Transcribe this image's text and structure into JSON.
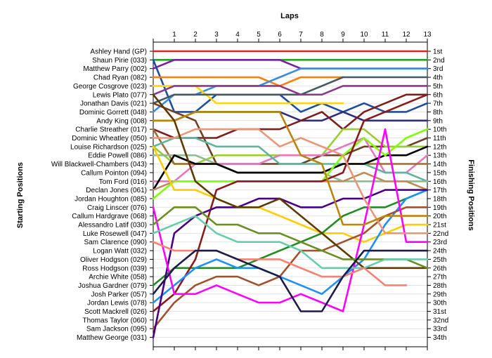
{
  "chart_data": {
    "type": "line",
    "top_title": "Laps",
    "left_title": "Starting Positions",
    "right_title": "Finishing Positions",
    "laps": [
      1,
      2,
      3,
      4,
      5,
      6,
      7,
      8,
      9,
      10,
      11,
      12,
      13
    ],
    "starting_positions": [
      "Ashley Hand (GP)",
      "Shaun Pirie (033)",
      "Matthew Parry (002)",
      "Chad Ryan (082)",
      "George Cosgrove (023)",
      "Lewis Plato (077)",
      "Jonathan Davis (021)",
      "Dominic Gorrett (048)",
      "Andy King (008)",
      "Charlie Streather (017)",
      "Dominic Wheatley (050)",
      "Louise Richardson (025)",
      "Eddie Powell (086)",
      "Will Blackwell-Chambers (043)",
      "Callum Pointon (094)",
      "Tom Ford (016)",
      "Declan Jones (061)",
      "Jordan Houghton (085)",
      "Craig Linscer (076)",
      "Callum Hardgrave (068)",
      "Alessandro Latif (030)",
      "Luke Rosewell (047)",
      "Sam Clarence (090)",
      "Logan Watt (032)",
      "Oliver Hodgson (029)",
      "Ross Hodgson (039)",
      "Archie White (058)",
      "Joshua Gardner (079)",
      "Josh Parker (057)",
      "Jordan Lewis (078)",
      "Scott Mackrell (026)",
      "Thomas Taylor (060)",
      "Sam Jackson (095)",
      "Matthew George (031)"
    ],
    "finishing_positions": [
      "1st",
      "2nd",
      "3rd",
      "4th",
      "5th",
      "6th",
      "7th",
      "8th",
      "9th",
      "10th",
      "11th",
      "12th",
      "13th",
      "14th",
      "15th",
      "16th",
      "17th",
      "18th",
      "19th",
      "20th",
      "21st",
      "22nd",
      "23rd",
      "24th",
      "25th",
      "26th",
      "27th",
      "28th",
      "29th",
      "30th",
      "31st",
      "32nd",
      "33rd",
      "34th"
    ],
    "xlim": [
      0,
      13
    ],
    "ylim": [
      1,
      34
    ],
    "y_reversed": true,
    "grid": "horizontal",
    "series": [
      {
        "color": "#d62728",
        "positions": [
          1,
          1,
          1,
          1,
          1,
          1,
          1,
          1,
          1,
          1,
          1,
          1,
          1,
          1
        ]
      },
      {
        "color": "#2ca02c",
        "positions": [
          2,
          2,
          2,
          2,
          2,
          2,
          2,
          2,
          2,
          2,
          2,
          2,
          2,
          2
        ]
      },
      {
        "color": "#7b1fa2",
        "positions": [
          3,
          2,
          2,
          2,
          2,
          2,
          2,
          3,
          3,
          3,
          3,
          3,
          3,
          3
        ]
      },
      {
        "color": "#1f4e9c",
        "positions": [
          2,
          8,
          8,
          6,
          6,
          6,
          6,
          8,
          7,
          8,
          7,
          8,
          8,
          7
        ]
      },
      {
        "color": "#ff7f0e",
        "positions": [
          4,
          4,
          4,
          4,
          4,
          4,
          5,
          4,
          4,
          4
        ]
      },
      {
        "color": "#3b8ddb",
        "positions": [
          8,
          6,
          6,
          5,
          5,
          5,
          4,
          3,
          3,
          3,
          3,
          3,
          3,
          3
        ]
      },
      {
        "color": "#ffd700",
        "positions": [
          5,
          5,
          5,
          7,
          7,
          7,
          7,
          7,
          7,
          7
        ]
      },
      {
        "color": "#455a64",
        "positions": [
          7,
          6,
          6,
          6,
          6,
          6,
          6,
          6,
          5,
          4,
          4,
          4,
          4,
          4
        ]
      },
      {
        "color": "#8b3a8b",
        "positions": [
          6,
          5,
          5,
          5,
          5,
          5,
          5,
          6,
          6,
          5,
          5,
          5,
          5,
          5
        ]
      },
      {
        "color": "#2e2e7a",
        "positions": [
          9,
          9,
          8,
          8,
          8,
          8,
          8,
          9,
          9,
          8,
          9,
          9,
          9,
          9
        ]
      },
      {
        "color": "#7b1f1f",
        "positions": [
          10,
          11,
          11,
          11,
          10,
          10,
          10,
          9,
          8,
          10,
          8,
          7,
          6,
          6
        ]
      },
      {
        "color": "#6b4226",
        "positions": [
          7,
          8,
          9,
          14,
          14,
          14,
          14,
          14,
          13,
          13,
          12,
          12,
          12,
          11
        ]
      },
      {
        "color": "#9acd32",
        "positions": [
          12,
          14,
          14,
          13,
          13,
          13,
          13,
          13,
          13,
          10,
          10,
          12,
          12,
          12
        ]
      },
      {
        "color": "#e377c2",
        "positions": [
          16,
          16,
          14,
          14,
          14,
          14,
          13,
          13,
          13,
          12,
          11,
          15,
          15,
          13
        ]
      },
      {
        "color": "#9d6b33",
        "positions": [
          10,
          14,
          14,
          14,
          15,
          15,
          15,
          15,
          15,
          14,
          14,
          14,
          14,
          14
        ]
      },
      {
        "color": "#5fb4a0",
        "positions": [
          12,
          11,
          11,
          12,
          12,
          12,
          14,
          14,
          14,
          14,
          14,
          15,
          15,
          16
        ]
      },
      {
        "color": "#8fbc8f",
        "positions": [
          13,
          13,
          13,
          14,
          15,
          15,
          15,
          15,
          15,
          16,
          16,
          16,
          16,
          16
        ]
      },
      {
        "color": "#000000",
        "positions": [
          17,
          13,
          14,
          14,
          15,
          15,
          15,
          15,
          15,
          14,
          14,
          13,
          13,
          12
        ]
      },
      {
        "color": "#bd8b57",
        "positions": [
          17,
          16,
          16,
          16,
          16,
          16,
          16,
          16,
          16,
          16,
          15,
          16,
          16,
          17
        ]
      },
      {
        "color": "#7fff00",
        "positions": [
          18,
          16,
          16,
          16,
          16,
          16,
          16,
          16,
          16,
          13,
          11,
          13,
          11,
          10
        ]
      },
      {
        "color": "#ffcc00",
        "positions": [
          12,
          17,
          17,
          18,
          19,
          19,
          20,
          21,
          22,
          22,
          23,
          22,
          21,
          21
        ]
      },
      {
        "color": "#228b22",
        "positions": [
          28,
          26,
          26,
          26,
          26,
          25,
          24,
          23,
          22,
          20,
          19,
          19,
          18,
          17
        ]
      },
      {
        "color": "#8b1a1a",
        "positions": [
          31,
          29,
          25,
          17,
          16,
          16,
          16,
          16,
          16,
          15,
          9,
          8,
          7,
          6
        ]
      },
      {
        "color": "#1e90ff",
        "positions": [
          30,
          28,
          26,
          25,
          26,
          26,
          27,
          28,
          29,
          27,
          25,
          21,
          18,
          17
        ]
      },
      {
        "color": "#a0522d",
        "positions": [
          33,
          30,
          28,
          27,
          27,
          28,
          27,
          24,
          24,
          23,
          22,
          20,
          19,
          19
        ]
      },
      {
        "color": "#4b0082",
        "positions": [
          34,
          22,
          20,
          19,
          19,
          18,
          18,
          19,
          19,
          18,
          18,
          17,
          17,
          17
        ]
      },
      {
        "color": "#ff00ff",
        "positions": [
          19,
          29,
          29,
          28,
          29,
          30,
          30,
          29,
          30,
          31,
          21,
          10,
          23,
          23
        ]
      },
      {
        "color": "#e9967a",
        "positions": [
          11,
          11,
          10,
          10,
          10,
          10,
          12,
          11,
          12,
          13,
          18,
          22,
          22,
          22
        ]
      },
      {
        "color": "#b8860b",
        "positions": [
          9,
          9,
          8,
          8,
          8,
          8,
          8,
          13,
          14,
          21,
          21,
          20,
          20,
          20
        ]
      },
      {
        "color": "#5d3a00",
        "positions": [
          6,
          9,
          16,
          18,
          19,
          19,
          18,
          20,
          22,
          24,
          26,
          26,
          26,
          26
        ]
      },
      {
        "color": "#6b8e23",
        "positions": [
          21,
          19,
          19,
          21,
          21,
          22,
          22,
          23,
          24,
          25,
          25,
          25,
          25,
          26
        ]
      },
      {
        "color": "#66cdaa",
        "positions": [
          22,
          21,
          20,
          22,
          23,
          23,
          23,
          24,
          26,
          26,
          26,
          25,
          25,
          25
        ]
      },
      {
        "color": "#fa8072",
        "positions": [
          23,
          24,
          24,
          24,
          25,
          25,
          25,
          26,
          27,
          27,
          26,
          28,
          28
        ]
      },
      {
        "color": "#1c1c4c",
        "positions": [
          29,
          26,
          24,
          24,
          25,
          26,
          27,
          31,
          31,
          27,
          24,
          24,
          24,
          24
        ]
      }
    ]
  }
}
